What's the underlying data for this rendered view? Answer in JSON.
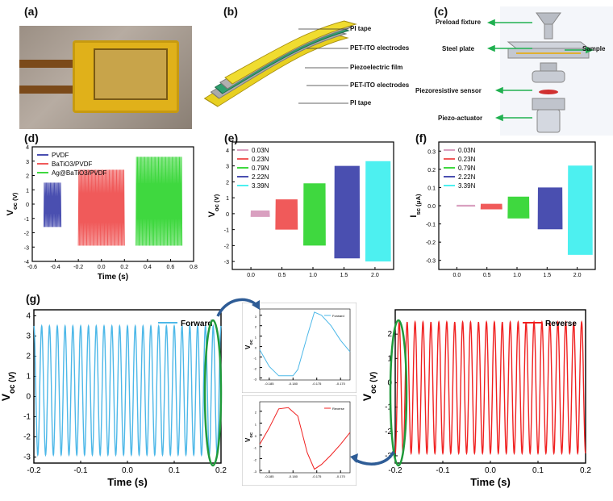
{
  "panels": {
    "a": "(a)",
    "b": "(b)",
    "c": "(c)",
    "d": "(d)",
    "e": "(e)",
    "f": "(f)",
    "g": "(g)"
  },
  "schematic_b": {
    "labels": [
      "PI tape",
      "PET-ITO electrodes",
      "Piezoelectric film",
      "PET-ITO electrodes",
      "PI tape"
    ]
  },
  "setup_c": {
    "labels": [
      "Preload fixture",
      "Steel plate",
      "Sample",
      "Piezoresistive sensor",
      "Piezo-actuator"
    ]
  },
  "colors": {
    "blue": "#4a4fb0",
    "red": "#f05a5a",
    "green": "#3fd83f",
    "cyan": "#4db8e8",
    "pink": "#d9a0c0",
    "black": "#000000"
  },
  "chart_data": [
    {
      "id": "d",
      "type": "line",
      "xlabel": "Time (s)",
      "ylabel": "V_oc (V)",
      "xlim": [
        -0.6,
        0.8
      ],
      "ylim": [
        -4,
        4
      ],
      "xticks": [
        "-0.6",
        "-0.4",
        "-0.2",
        "0.0",
        "0.2",
        "0.4",
        "0.6",
        "0.8"
      ],
      "yticks": [
        "-4",
        "-3",
        "-2",
        "-1",
        "0",
        "1",
        "2",
        "3",
        "4"
      ],
      "legend": [
        "PVDF",
        "BaTiO3/PVDF",
        "Ag@BaTiO3/PVDF"
      ],
      "series": [
        {
          "name": "PVDF",
          "x_range": [
            -0.5,
            -0.35
          ],
          "amplitude": [
            -1.6,
            1.5
          ],
          "color": "#4a4fb0"
        },
        {
          "name": "BaTiO3/PVDF",
          "x_range": [
            -0.2,
            0.2
          ],
          "amplitude": [
            -2.9,
            2.4
          ],
          "color": "#f05a5a"
        },
        {
          "name": "Ag@BaTiO3/PVDF",
          "x_range": [
            0.3,
            0.7
          ],
          "amplitude": [
            -2.9,
            3.3
          ],
          "color": "#3fd83f"
        }
      ]
    },
    {
      "id": "e",
      "type": "line",
      "xlabel": "",
      "ylabel": "V_oc (V)",
      "xlim": [
        -0.3,
        2.3
      ],
      "ylim": [
        -3.5,
        4.5
      ],
      "xticks": [
        "0.0",
        "0.5",
        "1.0",
        "1.5",
        "2.0"
      ],
      "yticks": [
        "-3",
        "-2",
        "-1",
        "0",
        "1",
        "2",
        "3",
        "4"
      ],
      "legend": [
        "0.03N",
        "0.23N",
        "0.79N",
        "2.22N",
        "3.39N"
      ],
      "series": [
        {
          "name": "0.03N",
          "x_range": [
            0.0,
            0.3
          ],
          "amplitude": [
            -0.2,
            0.2
          ],
          "color": "#d9a0c0"
        },
        {
          "name": "0.23N",
          "x_range": [
            0.4,
            0.75
          ],
          "amplitude": [
            -1.0,
            0.9
          ],
          "color": "#f05a5a"
        },
        {
          "name": "0.79N",
          "x_range": [
            0.85,
            1.2
          ],
          "amplitude": [
            -2.0,
            1.9
          ],
          "color": "#3fd83f"
        },
        {
          "name": "2.22N",
          "x_range": [
            1.35,
            1.75
          ],
          "amplitude": [
            -2.8,
            3.0
          ],
          "color": "#4a4fb0"
        },
        {
          "name": "3.39N",
          "x_range": [
            1.85,
            2.25
          ],
          "amplitude": [
            -3.0,
            3.3
          ],
          "color": "#4df0f0"
        }
      ]
    },
    {
      "id": "f",
      "type": "line",
      "xlabel": "",
      "ylabel": "I_sc (μA)",
      "xlim": [
        -0.3,
        2.3
      ],
      "ylim": [
        -0.35,
        0.35
      ],
      "xticks": [
        "0.0",
        "0.5",
        "1.0",
        "1.5",
        "2.0"
      ],
      "yticks": [
        "-0.3",
        "-0.2",
        "-0.1",
        "0.0",
        "0.1",
        "0.2",
        "0.3"
      ],
      "legend": [
        "0.03N",
        "0.23N",
        "0.79N",
        "2.22N",
        "3.39N"
      ],
      "series": [
        {
          "name": "0.03N",
          "x_range": [
            0.0,
            0.3
          ],
          "amplitude": [
            -0.005,
            0.005
          ],
          "color": "#d9a0c0"
        },
        {
          "name": "0.23N",
          "x_range": [
            0.4,
            0.75
          ],
          "amplitude": [
            -0.02,
            0.01
          ],
          "color": "#f05a5a"
        },
        {
          "name": "0.79N",
          "x_range": [
            0.85,
            1.2
          ],
          "amplitude": [
            -0.07,
            0.05
          ],
          "color": "#3fd83f"
        },
        {
          "name": "2.22N",
          "x_range": [
            1.35,
            1.75
          ],
          "amplitude": [
            -0.13,
            0.1
          ],
          "color": "#4a4fb0"
        },
        {
          "name": "3.39N",
          "x_range": [
            1.85,
            2.25
          ],
          "amplitude": [
            -0.27,
            0.22
          ],
          "color": "#4df0f0"
        }
      ]
    },
    {
      "id": "g-forward",
      "type": "line",
      "xlabel": "Time (s)",
      "ylabel": "V_oc (V)",
      "xlim": [
        -0.2,
        0.2
      ],
      "ylim": [
        -3.3,
        4.3
      ],
      "xticks": [
        "-0.2",
        "-0.1",
        "0.0",
        "0.1",
        "0.2"
      ],
      "yticks": [
        "-3",
        "-2",
        "-1",
        "0",
        "1",
        "2",
        "3",
        "4"
      ],
      "legend": [
        "Forward"
      ],
      "series": [
        {
          "name": "Forward",
          "x_range": [
            -0.2,
            0.2
          ],
          "amplitude": [
            -2.9,
            3.5
          ],
          "cycles": 24,
          "color": "#4db8e8"
        }
      ]
    },
    {
      "id": "g-reverse",
      "type": "line",
      "xlabel": "Time (s)",
      "ylabel": "V_oc (V)",
      "xlim": [
        -0.2,
        0.2
      ],
      "ylim": [
        -3.3,
        3.0
      ],
      "xticks": [
        "-0.2",
        "-0.1",
        "0.0",
        "0.1",
        "0.2"
      ],
      "yticks": [
        "-3",
        "-2",
        "-1",
        "0",
        "1",
        "2"
      ],
      "legend": [
        "Reverse"
      ],
      "series": [
        {
          "name": "Reverse",
          "x_range": [
            -0.2,
            0.2
          ],
          "amplitude": [
            -2.9,
            2.5
          ],
          "cycles": 24,
          "color": "#f02020"
        }
      ]
    },
    {
      "id": "g-zoom-forward",
      "type": "line",
      "xlabel": "",
      "ylabel": "V_oc",
      "xlim": [
        -0.187,
        -0.168
      ],
      "ylim": [
        -3.2,
        3.6
      ],
      "xticks": [
        "-0.185",
        "-0.180",
        "-0.175",
        "-0.170"
      ],
      "yticks": [
        "-3",
        "-2",
        "-1",
        "0",
        "1",
        "2",
        "3"
      ],
      "legend": [
        "Forward"
      ],
      "series": [
        {
          "name": "Forward",
          "color": "#4db8e8"
        }
      ]
    },
    {
      "id": "g-zoom-reverse",
      "type": "line",
      "xlabel": "",
      "ylabel": "V_oc",
      "xlim": [
        -0.187,
        -0.168
      ],
      "ylim": [
        -3.2,
        2.8
      ],
      "xticks": [
        "-0.185",
        "-0.180",
        "-0.175",
        "-0.170"
      ],
      "yticks": [
        "-3",
        "-2",
        "-1",
        "0",
        "1",
        "2"
      ],
      "legend": [
        "Reverse"
      ],
      "series": [
        {
          "name": "Reverse",
          "color": "#f02020"
        }
      ]
    }
  ]
}
